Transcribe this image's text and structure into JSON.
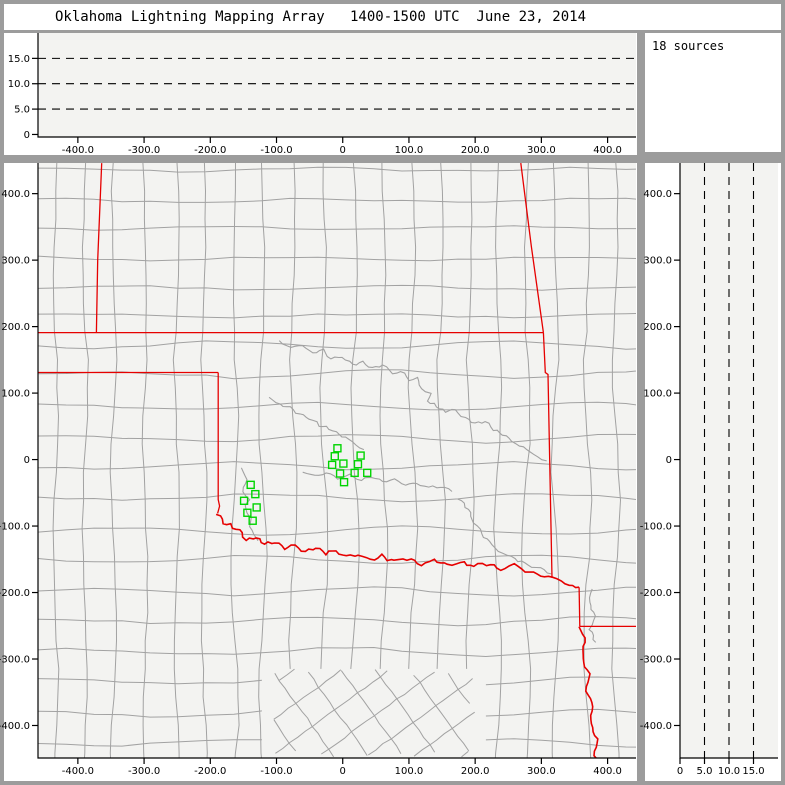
{
  "title": "Oklahoma Lightning Mapping Array   1400-1500 UTC  June 23, 2014",
  "sources_panel": {
    "count_label": "18 sources"
  },
  "colors": {
    "window_chrome": "#9c9c9c",
    "panel_bg": "#ffffff",
    "plot_bg": "#f3f3f1",
    "axis": "#000000",
    "county_line": "#a2a2a2",
    "state_border": "#e60000",
    "marker": "#00d400"
  },
  "chart_data": [
    {
      "id": "alt-ew",
      "type": "scatter",
      "description": "altitude (km) vs east-west distance (km), empty of points",
      "xlim": [
        -460.2,
        442.9
      ],
      "ylim": [
        -0.5,
        20.0
      ],
      "x_ticks": [
        -400,
        -300,
        -200,
        -100,
        0,
        100,
        200,
        300,
        400
      ],
      "x_tick_labels": [
        "-400.0",
        "-300.0",
        "-200.0",
        "-100.0",
        "0",
        "100.0",
        "200.0",
        "300.0",
        "400.0"
      ],
      "y_ticks": [
        0,
        5,
        10,
        15
      ],
      "y_tick_labels": [
        "0",
        "5.0",
        "10.0",
        "15.0"
      ],
      "dashed_lines_y": [
        5,
        10,
        15
      ],
      "grid": "dashed horizontal at 5,10,15 km",
      "points": []
    },
    {
      "id": "map",
      "type": "scatter",
      "description": "plan view map, distances in km from network center",
      "xlim": [
        -460.2,
        442.9
      ],
      "ylim": [
        -448.9,
        446.1
      ],
      "x_ticks": [
        -400,
        -300,
        -200,
        -100,
        0,
        100,
        200,
        300,
        400
      ],
      "x_tick_labels": [
        "-400.0",
        "-300.0",
        "-200.0",
        "-100.0",
        "0",
        "100.0",
        "200.0",
        "300.0",
        "400.0"
      ],
      "y_ticks": [
        400,
        300,
        200,
        100,
        0,
        -100,
        -200,
        -300,
        -400
      ],
      "y_tick_labels": [
        "400.0",
        "300.0",
        "200.0",
        "100.0",
        "0",
        "-100.0",
        "-200.0",
        "-300.0",
        "-400.0"
      ],
      "markers": [
        [
          -8,
          17
        ],
        [
          -12,
          5
        ],
        [
          27,
          6
        ],
        [
          -16,
          -8
        ],
        [
          1,
          -6
        ],
        [
          23,
          -7
        ],
        [
          -4,
          -21
        ],
        [
          18,
          -20
        ],
        [
          37,
          -20
        ],
        [
          2,
          -34
        ],
        [
          -139,
          -38
        ],
        [
          -132,
          -52
        ],
        [
          -149,
          -62
        ],
        [
          -130,
          -72
        ],
        [
          -144,
          -80
        ],
        [
          -136,
          -92
        ]
      ],
      "state_borders": {
        "straight": [
          [
            [
              -364,
              446
            ],
            [
              -370,
              300
            ],
            [
              -372,
              191
            ]
          ],
          [
            [
              -460,
              191
            ],
            [
              303,
              191
            ]
          ],
          [
            [
              269,
              446
            ],
            [
              285,
              320
            ],
            [
              303,
              191
            ]
          ],
          [
            [
              -460,
              131
            ],
            [
              -188,
              131
            ]
          ],
          [
            [
              -188,
              131
            ],
            [
              -188,
              -60
            ],
            [
              -186,
              -70
            ],
            [
              -189,
              -81
            ]
          ],
          [
            [
              303,
              191
            ],
            [
              306,
              131
            ],
            [
              310,
              128
            ],
            [
              316,
              -178
            ]
          ],
          [
            [
              357,
              -192
            ],
            [
              358,
              -251
            ]
          ],
          [
            [
              358,
              -251
            ],
            [
              444,
              -251
            ]
          ]
        ],
        "wiggly": [
          {
            "amp": 2.2,
            "points": [
              [
                -189,
                -81
              ],
              [
                -180,
                -95
              ],
              [
                -165,
                -101
              ],
              [
                -152,
                -110
              ],
              [
                -146,
                -121
              ],
              [
                -130,
                -117
              ],
              [
                -118,
                -127
              ],
              [
                -102,
                -124
              ],
              [
                -88,
                -134
              ],
              [
                -72,
                -129
              ],
              [
                -56,
                -139
              ],
              [
                -40,
                -132
              ],
              [
                -26,
                -141
              ],
              [
                -10,
                -137
              ],
              [
                6,
                -147
              ],
              [
                24,
                -142
              ],
              [
                42,
                -151
              ],
              [
                58,
                -145
              ],
              [
                78,
                -154
              ],
              [
                98,
                -149
              ],
              [
                118,
                -157
              ],
              [
                138,
                -151
              ],
              [
                158,
                -159
              ],
              [
                178,
                -154
              ],
              [
                198,
                -161
              ],
              [
                218,
                -157
              ],
              [
                238,
                -164
              ],
              [
                258,
                -159
              ],
              [
                276,
                -167
              ],
              [
                294,
                -172
              ],
              [
                310,
                -178
              ],
              [
                316,
                -180
              ],
              [
                330,
                -183
              ],
              [
                342,
                -189
              ],
              [
                357,
                -192
              ]
            ]
          },
          {
            "amp": 1.5,
            "points": [
              [
                358,
                -251
              ],
              [
                366,
                -275
              ],
              [
                362,
                -300
              ],
              [
                372,
                -322
              ],
              [
                368,
                -348
              ],
              [
                378,
                -372
              ],
              [
                374,
                -398
              ],
              [
                384,
                -420
              ],
              [
                380,
                -445
              ],
              [
                388,
                -456
              ]
            ]
          }
        ]
      },
      "rivers": [
        {
          "amp": 1.8,
          "points": [
            [
              -95,
              180
            ],
            [
              -78,
              168
            ],
            [
              -60,
              172
            ],
            [
              -45,
              160
            ],
            [
              -30,
              165
            ],
            [
              -18,
              152
            ],
            [
              0,
              155
            ],
            [
              15,
              143
            ],
            [
              30,
              147
            ],
            [
              45,
              138
            ],
            [
              60,
              142
            ],
            [
              75,
              130
            ],
            [
              88,
              133
            ],
            [
              100,
              120
            ],
            [
              112,
              123
            ],
            [
              120,
              108
            ],
            [
              132,
              100
            ],
            [
              128,
              88
            ],
            [
              142,
              80
            ],
            [
              155,
              72
            ],
            [
              170,
              75
            ],
            [
              185,
              62
            ],
            [
              200,
              55
            ],
            [
              215,
              57
            ],
            [
              228,
              45
            ],
            [
              242,
              38
            ],
            [
              255,
              28
            ],
            [
              268,
              22
            ],
            [
              282,
              12
            ],
            [
              295,
              5
            ],
            [
              308,
              -2
            ]
          ]
        },
        {
          "amp": 1.8,
          "points": [
            [
              -110,
              95
            ],
            [
              -95,
              82
            ],
            [
              -80,
              78
            ],
            [
              -65,
              68
            ],
            [
              -50,
              62
            ],
            [
              -35,
              52
            ],
            [
              -20,
              47
            ],
            [
              -5,
              38
            ],
            [
              8,
              30
            ],
            [
              20,
              22
            ],
            [
              32,
              15
            ]
          ]
        },
        {
          "amp": 1.6,
          "points": [
            [
              -152,
              -12
            ],
            [
              -146,
              -30
            ],
            [
              -150,
              -48
            ],
            [
              -142,
              -60
            ],
            [
              -147,
              -75
            ],
            [
              -138,
              -88
            ],
            [
              -142,
              -102
            ],
            [
              -133,
              -112
            ],
            [
              -128,
              -122
            ]
          ]
        },
        {
          "amp": 1.8,
          "points": [
            [
              175,
              -58
            ],
            [
              190,
              -75
            ],
            [
              198,
              -95
            ],
            [
              210,
              -112
            ],
            [
              225,
              -128
            ],
            [
              242,
              -140
            ],
            [
              260,
              -150
            ],
            [
              280,
              -158
            ],
            [
              298,
              -165
            ],
            [
              315,
              -172
            ]
          ]
        },
        {
          "amp": 1.6,
          "points": [
            [
              378,
              -195
            ],
            [
              372,
              -215
            ],
            [
              380,
              -235
            ],
            [
              374,
              -255
            ],
            [
              382,
              -275
            ]
          ]
        },
        {
          "amp": 1.6,
          "points": [
            [
              -60,
              -18
            ],
            [
              -42,
              -25
            ],
            [
              -25,
              -20
            ],
            [
              -8,
              -28
            ],
            [
              10,
              -24
            ],
            [
              28,
              -30
            ],
            [
              45,
              -26
            ],
            [
              60,
              -33
            ],
            [
              78,
              -30
            ],
            [
              95,
              -38
            ],
            [
              112,
              -35
            ],
            [
              130,
              -42
            ],
            [
              148,
              -40
            ],
            [
              165,
              -48
            ]
          ]
        }
      ],
      "county_grid": {
        "spacing_km": 44.5,
        "seed": 20140623,
        "diagonal_region": {
          "x": [
            -105,
            200
          ],
          "y": [
            -456,
            -315
          ]
        }
      }
    },
    {
      "id": "alt-ns",
      "type": "scatter",
      "description": "north-south distance (km) vs altitude (km), empty of points",
      "xlim": [
        0,
        20
      ],
      "ylim": [
        -448.9,
        446.1
      ],
      "x_ticks": [
        0,
        5,
        10,
        15
      ],
      "x_tick_labels": [
        "0",
        "5.0",
        "10.0",
        "15.0"
      ],
      "y_ticks": [
        400,
        300,
        200,
        100,
        0,
        -100,
        -200,
        -300,
        -400
      ],
      "y_tick_labels": [
        "400.0",
        "300.0",
        "200.0",
        "100.0",
        "0",
        "-100.0",
        "-200.0",
        "-300.0",
        "-400.0"
      ],
      "dashed_lines_x": [
        5,
        10,
        15
      ],
      "grid": "dashed vertical at 5,10,15 km",
      "points": []
    }
  ]
}
